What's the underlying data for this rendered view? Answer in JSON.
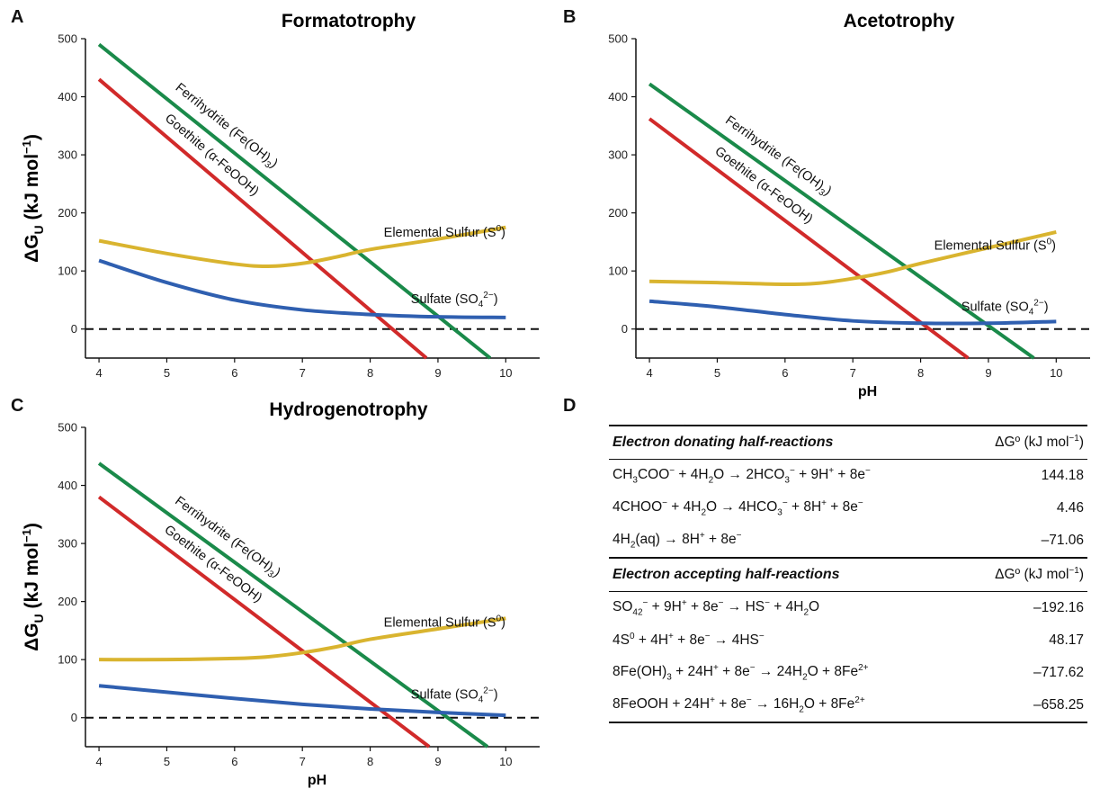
{
  "colors": {
    "ferrihydrite": "#1a8a4a",
    "goethite": "#d12a2a",
    "elemental_sulfur": "#d9b42f",
    "sulfate": "#2f5fb0",
    "zero_line": "#111111"
  },
  "chart_data": [
    {
      "panel": "A",
      "type": "line",
      "title": "Formatotrophy",
      "xlabel": "",
      "ylabel": "ΔGU (kJ mol−1)",
      "xlim": [
        3.8,
        10.5
      ],
      "ylim": [
        -50,
        500
      ],
      "xticks": [
        4,
        5,
        6,
        7,
        8,
        9,
        10
      ],
      "yticks": [
        0,
        100,
        200,
        300,
        400,
        500
      ],
      "zero_line": true,
      "series": [
        {
          "name": "Ferrihydrite (Fe(OH)3)",
          "key": "ferrihydrite",
          "x": [
            4,
            9.77
          ],
          "y": [
            490,
            -50
          ]
        },
        {
          "name": "Goethite (α-FeOOH)",
          "key": "goethite",
          "x": [
            4,
            8.83
          ],
          "y": [
            430,
            -50
          ]
        },
        {
          "name": "Elemental Sulfur (S0)",
          "key": "elemental_sulfur",
          "x": [
            4,
            5,
            6,
            6.5,
            7,
            7.5,
            8,
            9,
            10
          ],
          "y": [
            152,
            130,
            112,
            108,
            113,
            124,
            137,
            155,
            175
          ]
        },
        {
          "name": "Sulfate (SO42−)",
          "key": "sulfate",
          "x": [
            4,
            5,
            6,
            7,
            8,
            9,
            10
          ],
          "y": [
            118,
            80,
            50,
            33,
            25,
            21,
            20
          ]
        }
      ]
    },
    {
      "panel": "B",
      "type": "line",
      "title": "Acetotrophy",
      "xlabel": "pH",
      "ylabel": "",
      "xlim": [
        3.8,
        10.5
      ],
      "ylim": [
        -50,
        500
      ],
      "xticks": [
        4,
        5,
        6,
        7,
        8,
        9,
        10
      ],
      "yticks": [
        0,
        100,
        200,
        300,
        400,
        500
      ],
      "zero_line": true,
      "series": [
        {
          "name": "Ferrihydrite (Fe(OH)3)",
          "key": "ferrihydrite",
          "x": [
            4,
            9.67
          ],
          "y": [
            422,
            -50
          ]
        },
        {
          "name": "Goethite (α-FeOOH)",
          "key": "goethite",
          "x": [
            4,
            8.7
          ],
          "y": [
            362,
            -50
          ]
        },
        {
          "name": "Elemental Sulfur (S0)",
          "key": "elemental_sulfur",
          "x": [
            4,
            5,
            6,
            6.5,
            7,
            7.5,
            8,
            9,
            10
          ],
          "y": [
            82,
            80,
            77,
            79,
            87,
            98,
            113,
            140,
            167
          ]
        },
        {
          "name": "Sulfate (SO42−)",
          "key": "sulfate",
          "x": [
            4,
            5,
            6,
            7,
            8,
            9,
            10
          ],
          "y": [
            48,
            38,
            25,
            14,
            10,
            10,
            13
          ]
        }
      ]
    },
    {
      "panel": "C",
      "type": "line",
      "title": "Hydrogenotrophy",
      "xlabel": "pH",
      "ylabel": "ΔGU (kJ mol−1)",
      "xlim": [
        3.8,
        10.5
      ],
      "ylim": [
        -50,
        500
      ],
      "xticks": [
        4,
        5,
        6,
        7,
        8,
        9,
        10
      ],
      "yticks": [
        0,
        100,
        200,
        300,
        400,
        500
      ],
      "zero_line": true,
      "series": [
        {
          "name": "Ferrihydrite (Fe(OH)3)",
          "key": "ferrihydrite",
          "x": [
            4,
            9.73
          ],
          "y": [
            438,
            -50
          ]
        },
        {
          "name": "Goethite (α-FeOOH)",
          "key": "goethite",
          "x": [
            4,
            8.87
          ],
          "y": [
            380,
            -50
          ]
        },
        {
          "name": "Elemental Sulfur (S0)",
          "key": "elemental_sulfur",
          "x": [
            4,
            5,
            6,
            6.5,
            7,
            7.5,
            8,
            9,
            10
          ],
          "y": [
            100,
            100,
            102,
            105,
            112,
            122,
            135,
            153,
            171
          ]
        },
        {
          "name": "Sulfate (SO42−)",
          "key": "sulfate",
          "x": [
            4,
            5,
            6,
            7,
            8,
            9,
            10
          ],
          "y": [
            55,
            44,
            33,
            23,
            15,
            9,
            4
          ]
        }
      ]
    }
  ],
  "panels": {
    "A": {
      "letter": "A",
      "title": "Formatotrophy"
    },
    "B": {
      "letter": "B",
      "title": "Acetotrophy",
      "xlabel": "pH"
    },
    "C": {
      "letter": "C",
      "title": "Hydrogenotrophy",
      "xlabel": "pH"
    },
    "D": {
      "letter": "D"
    }
  },
  "table": {
    "donating_header": "Electron donating half-reactions",
    "accepting_header": "Electron accepting half-reactions",
    "dg_header": "ΔGº (kJ mol⁻¹)",
    "donating_rows": [
      {
        "reaction": "CH3COO− + 4H2O → 2HCO3− + 9H+ + 8e−",
        "dg": "144.18"
      },
      {
        "reaction": "4CHOO− + 4H2O → 4HCO3− + 8H+ + 8e−",
        "dg": "4.46"
      },
      {
        "reaction": "4H2(aq) → 8H+ + 8e−",
        "dg": "–71.06"
      }
    ],
    "accepting_rows": [
      {
        "reaction": "SO42− + 9H+ + 8e− → HS− + 4H2O",
        "dg": "–192.16"
      },
      {
        "reaction": "4S0 + 4H+ + 8e− → 4HS−",
        "dg": "48.17"
      },
      {
        "reaction": "8Fe(OH)3 + 24H+ + 8e− → 24H2O + 8Fe2+",
        "dg": "–717.62"
      },
      {
        "reaction": "8FeOOH + 24H+ + 8e− → 16H2O + 8Fe2+",
        "dg": "–658.25"
      }
    ]
  }
}
